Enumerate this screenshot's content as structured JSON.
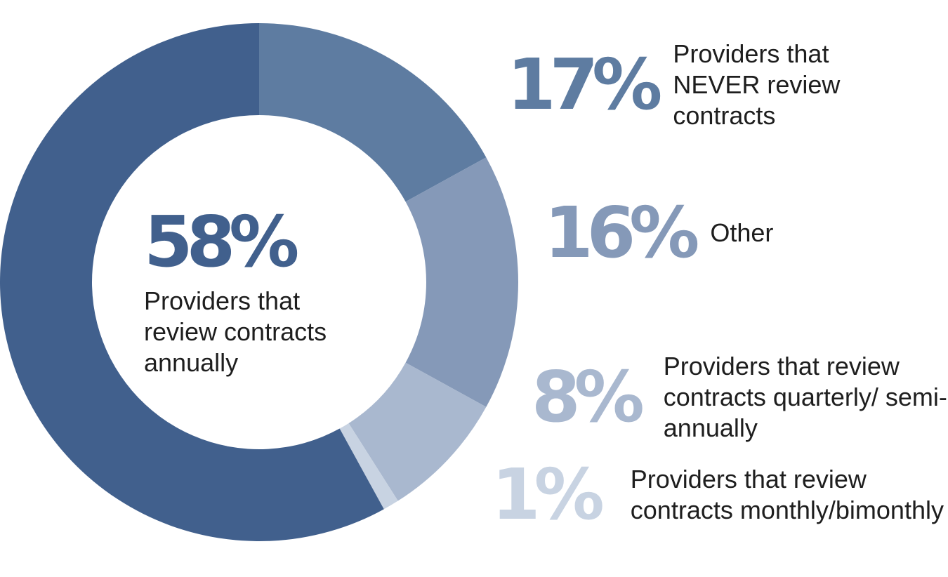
{
  "chart_data": {
    "type": "pie",
    "donut": true,
    "start_category": "Providers that NEVER review contracts",
    "direction": "clockwise",
    "slices": [
      {
        "percent_label": "17%",
        "label": "Providers that NEVER review contracts",
        "value": 17,
        "color": "#5e7ca1"
      },
      {
        "percent_label": "16%",
        "label": "Other",
        "value": 16,
        "color": "#8599b8"
      },
      {
        "percent_label": "8%",
        "label": "Providers that review contracts quarterly/ semi-annually",
        "value": 8,
        "color": "#a9b8cf"
      },
      {
        "percent_label": "1%",
        "label": "Providers that review contracts monthly/bimonthly",
        "value": 1,
        "color": "#c8d3e2"
      },
      {
        "percent_label": "58%",
        "label": "Providers that review contracts annually",
        "value": 58,
        "color": "#41608d"
      }
    ]
  }
}
